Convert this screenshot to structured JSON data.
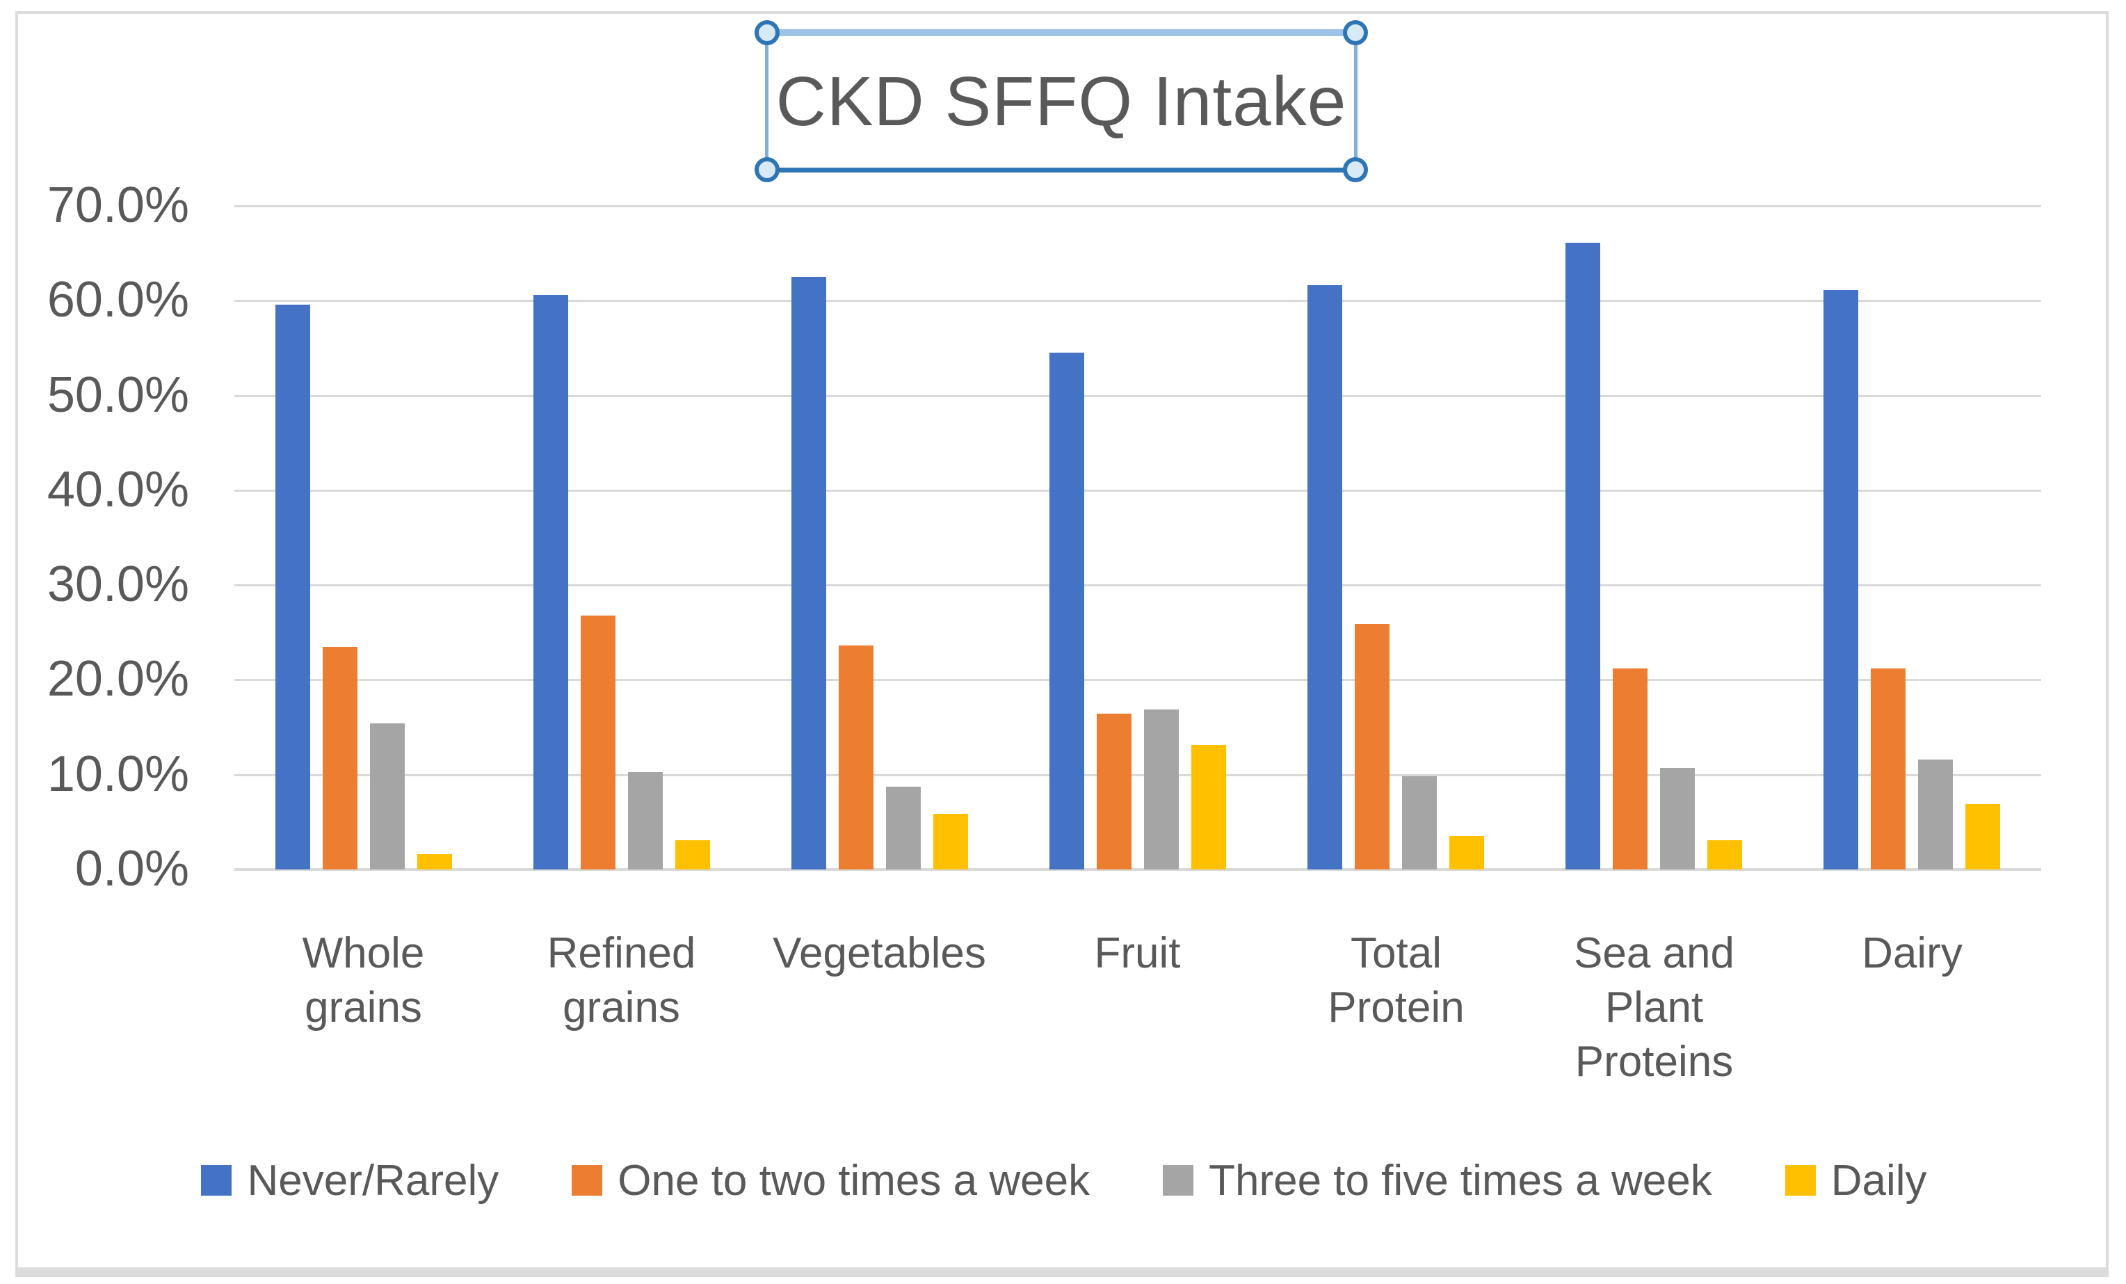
{
  "chart": {
    "title": "CKD SFFQ Intake",
    "title_selected": true
  },
  "colors": {
    "series_blue": "#4472C4",
    "series_orange": "#ED7D31",
    "series_gray": "#A5A5A5",
    "series_yellow": "#FFC000",
    "gridline": "#D9D9D9",
    "frame_border": "#DCDCDC",
    "text": "#595959",
    "selection_border_light": "#9DC3E6",
    "selection_border_dark": "#2E75B6",
    "selection_handle_fill": "#D8E9F8"
  },
  "chart_data": {
    "type": "bar",
    "title": "CKD SFFQ Intake",
    "categories": [
      "Whole grains",
      "Refined grains",
      "Vegetables",
      "Fruit",
      "Total Protein",
      "Sea and Plant Proteins",
      "Dairy"
    ],
    "category_label_lines": [
      [
        "Whole",
        "grains"
      ],
      [
        "Refined",
        "grains"
      ],
      [
        "Vegetables"
      ],
      [
        "Fruit"
      ],
      [
        "Total",
        "Protein"
      ],
      [
        "Sea and",
        "Plant",
        "Proteins"
      ],
      [
        "Dairy"
      ]
    ],
    "series": [
      {
        "name": "Never/Rarely",
        "color": "#4472C4",
        "values": [
          59.6,
          60.6,
          62.5,
          54.5,
          61.6,
          66.1,
          61.1
        ]
      },
      {
        "name": "One to two times a week",
        "color": "#ED7D31",
        "values": [
          23.5,
          26.8,
          23.6,
          16.4,
          25.9,
          21.2,
          21.2
        ]
      },
      {
        "name": "Three to five times a week",
        "color": "#A5A5A5",
        "values": [
          15.4,
          10.3,
          8.7,
          16.9,
          9.8,
          10.7,
          11.6
        ]
      },
      {
        "name": "Daily",
        "color": "#FFC000",
        "values": [
          1.6,
          3.1,
          5.9,
          13.1,
          3.5,
          3.1,
          6.9
        ]
      }
    ],
    "xlabel": "",
    "ylabel": "",
    "ylim": [
      0,
      70
    ],
    "y_tick_step": 10,
    "y_ticks": [
      "70.0%",
      "60.0%",
      "50.0%",
      "40.0%",
      "30.0%",
      "20.0%",
      "10.0%",
      "0.0%"
    ],
    "y_tick_format": "percent_one_decimal",
    "grid": "horizontal",
    "legend_position": "bottom"
  }
}
